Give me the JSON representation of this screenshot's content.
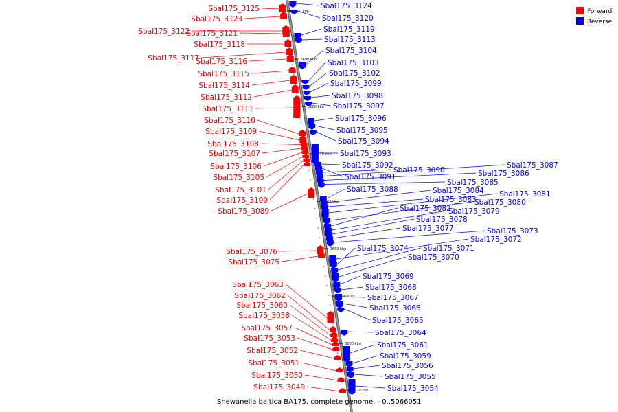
{
  "title": "Shewanella baltica BA175, complete genome. - 0..5066051",
  "legend": [
    {
      "label": "Forward",
      "color": "#ff0000"
    },
    {
      "label": "Reverse",
      "color": "#0000ff"
    }
  ],
  "colors": {
    "forward": "#ff0000",
    "reverse": "#0000ff",
    "backbone": "#999999"
  },
  "scale_labels": [
    "3700 kbp",
    "3690 kbp",
    "3680 kbp",
    "3670 kbp",
    "3660 kbp",
    "3650 kbp",
    "3640 kbp",
    "3630 kbp",
    "3620 kbp"
  ],
  "forward_genes": [
    "Sbal175_3125",
    "Sbal175_3123",
    "Sbal175_3122",
    "Sbal175_3121",
    "Sbal175_3118",
    "Sbal175_3117",
    "Sbal175_3116",
    "Sbal175_3115",
    "Sbal175_3114",
    "Sbal175_3112",
    "Sbal175_3111",
    "Sbal175_3110",
    "Sbal175_3109",
    "Sbal175_3108",
    "Sbal175_3107",
    "Sbal175_3106",
    "Sbal175_3105",
    "Sbal175_3101",
    "Sbal175_3100",
    "Sbal175_3089",
    "Sbal175_3076",
    "Sbal175_3075",
    "Sbal175_3063",
    "Sbal175_3062",
    "Sbal175_3060",
    "Sbal175_3058",
    "Sbal175_3057",
    "Sbal175_3053",
    "Sbal175_3052",
    "Sbal175_3051",
    "Sbal175_3050",
    "Sbal175_3049"
  ],
  "reverse_genes": [
    "Sbal175_3124",
    "Sbal175_3120",
    "Sbal175_3119",
    "Sbal175_3113",
    "Sbal175_3104",
    "Sbal175_3103",
    "Sbal175_3102",
    "Sbal175_3099",
    "Sbal175_3098",
    "Sbal175_3097",
    "Sbal175_3096",
    "Sbal175_3095",
    "Sbal175_3094",
    "Sbal175_3093",
    "Sbal175_3092",
    "Sbal175_3091",
    "Sbal175_3090",
    "Sbal175_3087",
    "Sbal175_3086",
    "Sbal175_3085",
    "Sbal175_3088",
    "Sbal175_3084",
    "Sbal175_3083",
    "Sbal175_3081",
    "Sbal175_3080",
    "Sbal175_3082",
    "Sbal175_3079",
    "Sbal175_3078",
    "Sbal175_3077",
    "Sbal175_3073",
    "Sbal175_3072",
    "Sbal175_3074",
    "Sbal175_3071",
    "Sbal175_3070",
    "Sbal175_3069",
    "Sbal175_3068",
    "Sbal175_3067",
    "Sbal175_3066",
    "Sbal175_3065",
    "Sbal175_3064",
    "Sbal175_3061",
    "Sbal175_3059",
    "Sbal175_3056",
    "Sbal175_3055",
    "Sbal175_3054"
  ]
}
